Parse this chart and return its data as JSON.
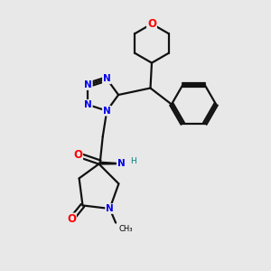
{
  "bg_color": "#e8e8e8",
  "N_color": "#0000ee",
  "O_color": "#ff0000",
  "H_color": "#008080",
  "C_color": "#000000",
  "bond_color": "#111111",
  "bond_lw": 1.6,
  "font_size": 7.5,
  "xlim": [
    0,
    10
  ],
  "ylim": [
    0,
    10
  ]
}
